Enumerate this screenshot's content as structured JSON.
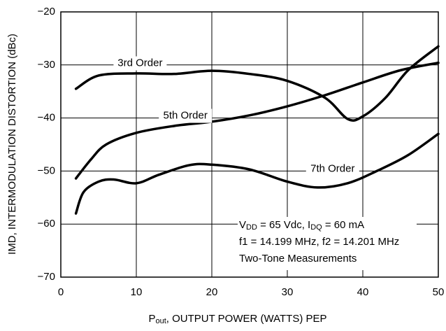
{
  "chart_data": {
    "type": "line",
    "xlabel": [
      "P",
      "out",
      ", OUTPUT POWER (WATTS) PEP"
    ],
    "ylabel": "IMD, INTERMODULATION DISTORTION (dBc)",
    "xlim": [
      0,
      50
    ],
    "xticks": [
      0,
      10,
      20,
      30,
      40,
      50
    ],
    "ylim": [
      -70,
      -20
    ],
    "yticks": [
      {
        "value": -20,
        "label": "−20"
      },
      {
        "value": -30,
        "label": "−30"
      },
      {
        "value": -40,
        "label": "−40"
      },
      {
        "value": -50,
        "label": "−50"
      },
      {
        "value": -60,
        "label": "−60"
      },
      {
        "value": -70,
        "label": "−70"
      }
    ],
    "grid": true,
    "series": [
      {
        "name": "3rd Order",
        "color": "#000000",
        "x": [
          2,
          5,
          10,
          15,
          20,
          25,
          30,
          35,
          38,
          40,
          43,
          46,
          50
        ],
        "values": [
          -34.5,
          -32.0,
          -31.6,
          -31.7,
          -31.1,
          -31.7,
          -33.0,
          -36.2,
          -40.2,
          -39.7,
          -36.2,
          -31.0,
          -26.5
        ]
      },
      {
        "name": "5th Order",
        "color": "#000000",
        "x": [
          2,
          4,
          6,
          10,
          15,
          20,
          25,
          30,
          35,
          40,
          45,
          50
        ],
        "values": [
          -51.4,
          -47.8,
          -45.0,
          -42.8,
          -41.5,
          -40.7,
          -39.5,
          -37.8,
          -35.7,
          -33.3,
          -31.0,
          -29.6
        ]
      },
      {
        "name": "7th Order",
        "color": "#000000",
        "x": [
          2,
          3,
          5,
          7,
          10,
          13,
          17,
          20,
          25,
          30,
          34,
          38,
          42,
          46,
          50
        ],
        "values": [
          -58.0,
          -54.0,
          -52.0,
          -51.6,
          -52.3,
          -50.7,
          -48.9,
          -48.8,
          -49.7,
          -52.0,
          -53.1,
          -52.3,
          -49.9,
          -47.0,
          -43.0
        ]
      }
    ],
    "annotations": [
      [
        "V",
        "DD",
        " = 65 Vdc, I",
        "DQ",
        " = 60 mA"
      ],
      [
        "f1 = 14.199 MHz, f2 = 14.201 MHz"
      ],
      [
        "Two-Tone Measurements"
      ]
    ]
  }
}
